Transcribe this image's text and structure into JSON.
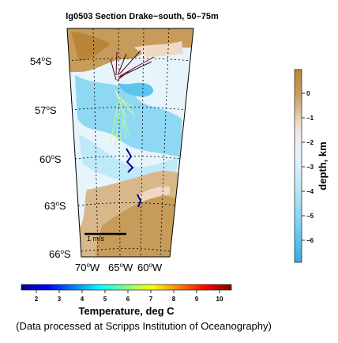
{
  "title": "lg0503 Section Drake−south, 50–75m",
  "map": {
    "lat_labels": [
      "54",
      "57",
      "60",
      "63",
      "66"
    ],
    "lat_suffix": "S",
    "lon_labels": [
      "70",
      "65",
      "60"
    ],
    "lon_suffix": "W",
    "degree_symbol": "o",
    "scale_label": "1 m/s"
  },
  "depth_colorbar": {
    "title": "depth, km",
    "ticks": [
      "0",
      "−1",
      "−2",
      "−3",
      "−4",
      "−5",
      "−6"
    ],
    "colors": [
      "#b8853a",
      "#c79b5a",
      "#d8b88a",
      "#efd9c4",
      "#f3e6f0",
      "#e6f4fb",
      "#bfe9f8",
      "#8fd8f4",
      "#5cc4ee",
      "#3aa9e0"
    ]
  },
  "temp_colorbar": {
    "title": "Temperature, deg C",
    "ticks": [
      "2",
      "3",
      "4",
      "5",
      "6",
      "7",
      "8",
      "9",
      "10"
    ],
    "colors": [
      "#00008f",
      "#0000ff",
      "#0080ff",
      "#00ffff",
      "#80ff80",
      "#ffff00",
      "#ff8000",
      "#ff0000",
      "#800000"
    ]
  },
  "credit": "(Data processed at Scripps Institution of Oceanography)"
}
